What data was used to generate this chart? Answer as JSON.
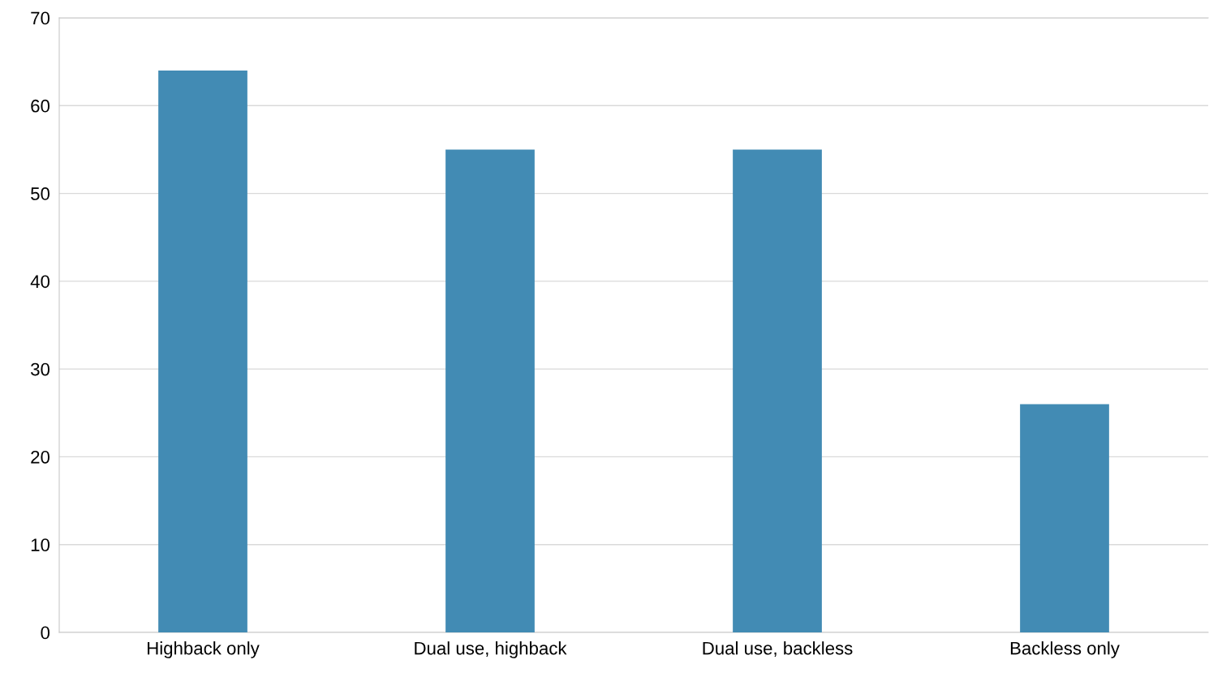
{
  "chart_data": {
    "type": "bar",
    "categories": [
      "Highback only",
      "Dual use, highback",
      "Dual use, backless",
      "Backless only"
    ],
    "values": [
      64,
      55,
      55,
      26
    ],
    "color": "#428bb4",
    "ylim": [
      0,
      70
    ],
    "yticks": [
      0,
      10,
      20,
      30,
      40,
      50,
      60,
      70
    ],
    "grid": "y",
    "legend": false
  }
}
